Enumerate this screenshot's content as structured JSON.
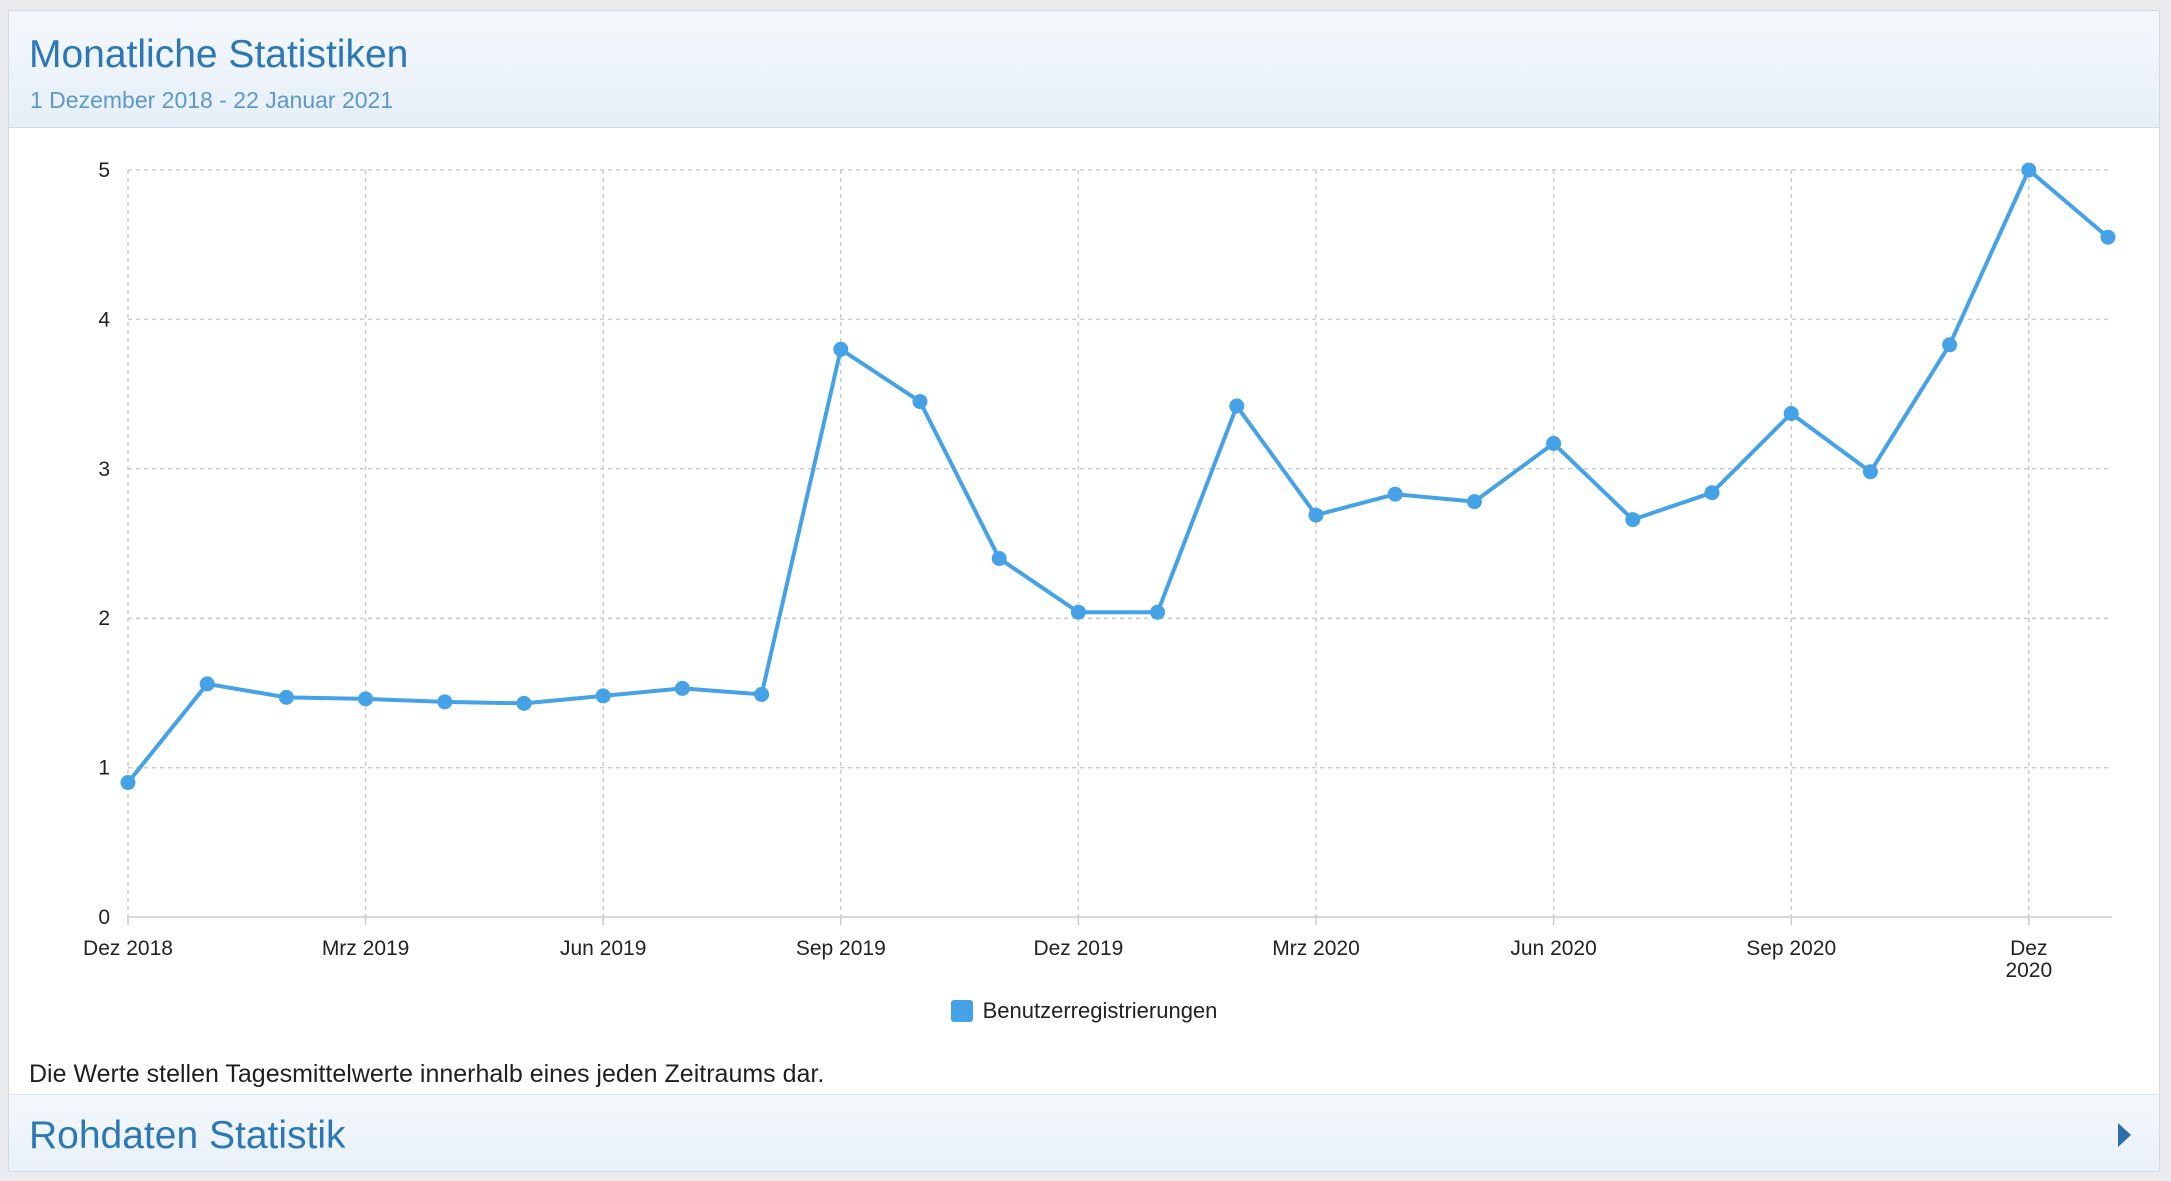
{
  "panel": {
    "title": "Monatliche Statistiken",
    "subtitle": "1 Dezember 2018 - 22 Januar 2021"
  },
  "note": "Die Werte stellen Tagesmittelwerte innerhalb eines jeden Zeitraums dar.",
  "raw_section": {
    "title": "Rohdaten Statistik",
    "icon": "caret-right-icon"
  },
  "colors": {
    "series": "#45a2e6",
    "accent": "#2c77b5"
  },
  "chart_data": {
    "type": "line",
    "title": "",
    "xlabel": "",
    "ylabel": "",
    "ylim": [
      0,
      5
    ],
    "yticks": [
      0,
      1,
      2,
      3,
      4,
      5
    ],
    "grid": true,
    "legend_position": "bottom",
    "x_tick_labels": [
      {
        "x": "2018-12",
        "label": "Dez 2018"
      },
      {
        "x": "2019-03",
        "label": "Mrz 2019"
      },
      {
        "x": "2019-06",
        "label": "Jun 2019"
      },
      {
        "x": "2019-09",
        "label": "Sep 2019"
      },
      {
        "x": "2019-12",
        "label": "Dez 2019"
      },
      {
        "x": "2020-03",
        "label": "Mrz 2020"
      },
      {
        "x": "2020-06",
        "label": "Jun 2020"
      },
      {
        "x": "2020-09",
        "label": "Sep 2020"
      },
      {
        "x": "2020-12",
        "label": "Dez 2020"
      }
    ],
    "x": [
      "2018-12",
      "2019-01",
      "2019-02",
      "2019-03",
      "2019-04",
      "2019-05",
      "2019-06",
      "2019-07",
      "2019-08",
      "2019-09",
      "2019-10",
      "2019-11",
      "2019-12",
      "2020-01",
      "2020-02",
      "2020-03",
      "2020-04",
      "2020-05",
      "2020-06",
      "2020-07",
      "2020-08",
      "2020-09",
      "2020-10",
      "2020-11",
      "2020-12",
      "2021-01"
    ],
    "series": [
      {
        "name": "Benutzerregistrierungen",
        "values": [
          0.9,
          1.56,
          1.47,
          1.46,
          1.44,
          1.43,
          1.48,
          1.53,
          1.49,
          3.8,
          3.45,
          2.4,
          2.04,
          2.04,
          3.42,
          2.69,
          2.83,
          2.78,
          3.17,
          2.66,
          2.84,
          3.37,
          2.98,
          3.83,
          5.0,
          4.55
        ]
      }
    ]
  }
}
